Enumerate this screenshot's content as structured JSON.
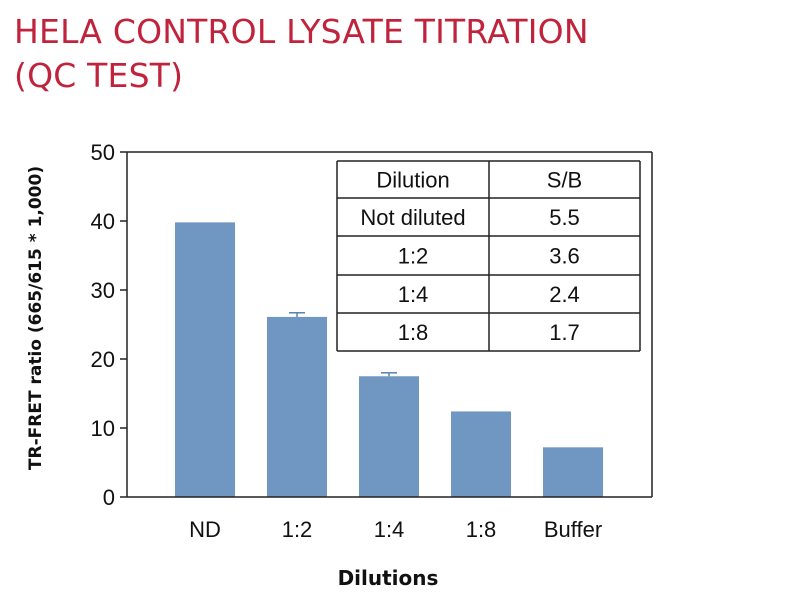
{
  "chart_data": {
    "type": "bar",
    "title_line1": "HELA CONTROL LYSATE TITRATION",
    "title_line2": "(QC TEST)",
    "xlabel": "Dilutions",
    "ylabel": "TR-FRET ratio (665/615 * 1,000)",
    "ylim": [
      0,
      50
    ],
    "yticks": [
      "0",
      "10",
      "20",
      "30",
      "40",
      "50"
    ],
    "categories": [
      "ND",
      "1:2",
      "1:4",
      "1:8",
      "Buffer"
    ],
    "values": [
      39.8,
      26.1,
      17.5,
      12.4,
      7.2
    ],
    "error": [
      0,
      0.6,
      0.5,
      0,
      0
    ],
    "colors": {
      "bar": "#7097c1",
      "title": "#c0243c"
    },
    "table": {
      "headers": [
        "Dilution",
        "S/B"
      ],
      "rows": [
        [
          "Not diluted",
          "5.5"
        ],
        [
          "1:2",
          "3.6"
        ],
        [
          "1:4",
          "2.4"
        ],
        [
          "1:8",
          "1.7"
        ]
      ]
    }
  }
}
